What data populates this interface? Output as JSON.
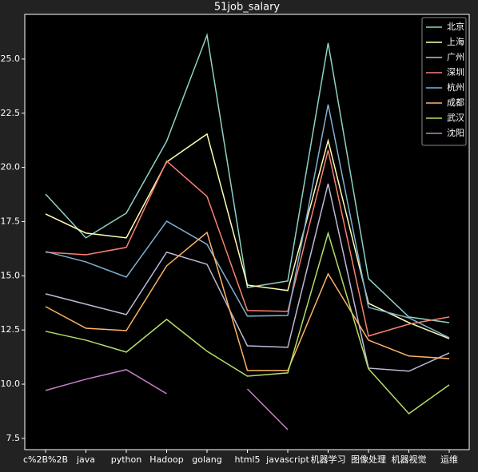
{
  "chart_data": {
    "type": "line",
    "title": "51job_salary",
    "categories": [
      "c%2B%2B",
      "java",
      "python",
      "Hadoop",
      "golang",
      "html5",
      "javascript",
      "机器学习",
      "图像处理",
      "机器视觉",
      "运维"
    ],
    "ylim": [
      6.98,
      27.06
    ],
    "yticks": [
      {
        "value": 7.5,
        "label": "7.5"
      },
      {
        "value": 10,
        "label": "10.0"
      },
      {
        "value": 12.5,
        "label": "12.5"
      },
      {
        "value": 15,
        "label": "15.0"
      },
      {
        "value": 17.5,
        "label": "17.5"
      },
      {
        "value": 20,
        "label": "20.0"
      },
      {
        "value": 22.5,
        "label": "22.5"
      },
      {
        "value": 25,
        "label": "25.0"
      }
    ],
    "legend": "upper right",
    "series": [
      {
        "name": "北京",
        "color": "#8dd3c7",
        "values": [
          18.77,
          16.75,
          17.89,
          21.21,
          26.1,
          14.46,
          14.76,
          25.74,
          14.87,
          13.1,
          12.84
        ]
      },
      {
        "name": "上海",
        "color": "#ffffb3",
        "values": [
          17.85,
          16.97,
          16.75,
          20.25,
          21.54,
          14.57,
          14.32,
          21.24,
          13.73,
          12.84,
          12.1
        ]
      },
      {
        "name": "广州",
        "color": "#bebada",
        "values": [
          14.17,
          13.69,
          13.21,
          16.09,
          15.53,
          11.77,
          11.7,
          19.25,
          10.74,
          10.6,
          11.44
        ]
      },
      {
        "name": "深圳",
        "color": "#fb8072",
        "values": [
          16.09,
          15.97,
          16.31,
          20.29,
          18.66,
          13.4,
          13.36,
          20.8,
          12.22,
          12.77,
          13.1
        ]
      },
      {
        "name": "杭州",
        "color": "#80b1d3",
        "values": [
          16.12,
          15.64,
          14.94,
          17.52,
          16.45,
          13.14,
          13.17,
          22.9,
          13.54,
          13.06,
          12.14
        ]
      },
      {
        "name": "成都",
        "color": "#fdb462",
        "values": [
          13.58,
          12.58,
          12.47,
          15.46,
          17.0,
          10.63,
          10.63,
          15.09,
          12.03,
          11.3,
          11.18
        ]
      },
      {
        "name": "武汉",
        "color": "#b3de69",
        "values": [
          12.44,
          12.03,
          11.48,
          12.99,
          11.52,
          10.37,
          10.52,
          16.97,
          10.71,
          8.64,
          9.97
        ]
      },
      {
        "name": "沈阳",
        "color": "#c77fc7",
        "values": [
          9.71,
          10.23,
          10.67,
          9.56,
          null,
          9.78,
          7.9,
          null,
          null,
          null,
          null
        ]
      }
    ]
  }
}
